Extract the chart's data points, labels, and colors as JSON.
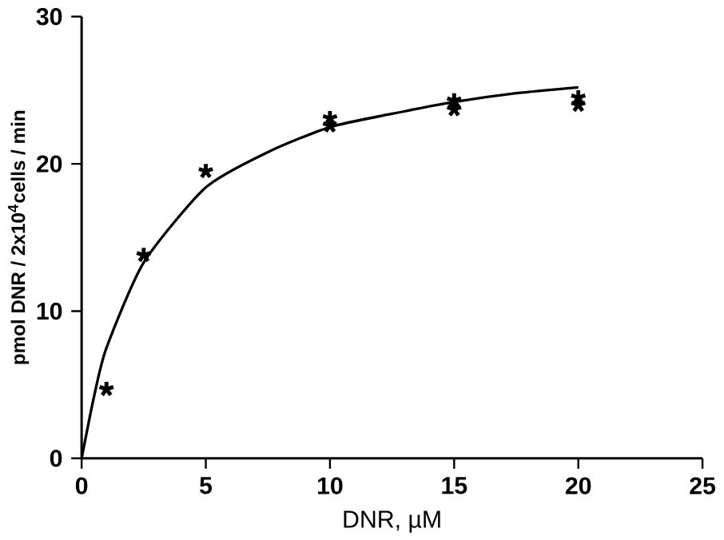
{
  "chart_data": {
    "type": "scatter",
    "xlabel": "DNR, µM",
    "ylabel": "pmol DNR / 2x10$^{4}$cells / min",
    "xlim": [
      0,
      25
    ],
    "ylim": [
      0,
      30
    ],
    "xticks": [
      0,
      5,
      10,
      15,
      20,
      25
    ],
    "yticks": [
      0,
      10,
      20,
      30
    ],
    "grid": false,
    "series": [
      {
        "marker": "cross",
        "color": "#000000",
        "x": [
          1,
          2.5,
          5,
          10,
          10,
          15,
          15,
          20,
          20
        ],
        "values": [
          4.7,
          13.8,
          19.5,
          23.1,
          22.6,
          24.3,
          23.7,
          24.5,
          24.0
        ]
      },
      {
        "type": "line",
        "marker": "none",
        "line_style": "solid",
        "color": "#000000",
        "x": [
          0,
          0.5,
          1,
          2.5,
          5,
          7.5,
          10,
          12.5,
          15,
          17.5,
          20
        ],
        "values": [
          0,
          4.2,
          7.5,
          13.3,
          18.4,
          20.8,
          22.5,
          23.4,
          24.2,
          24.8,
          25.2
        ]
      }
    ]
  }
}
